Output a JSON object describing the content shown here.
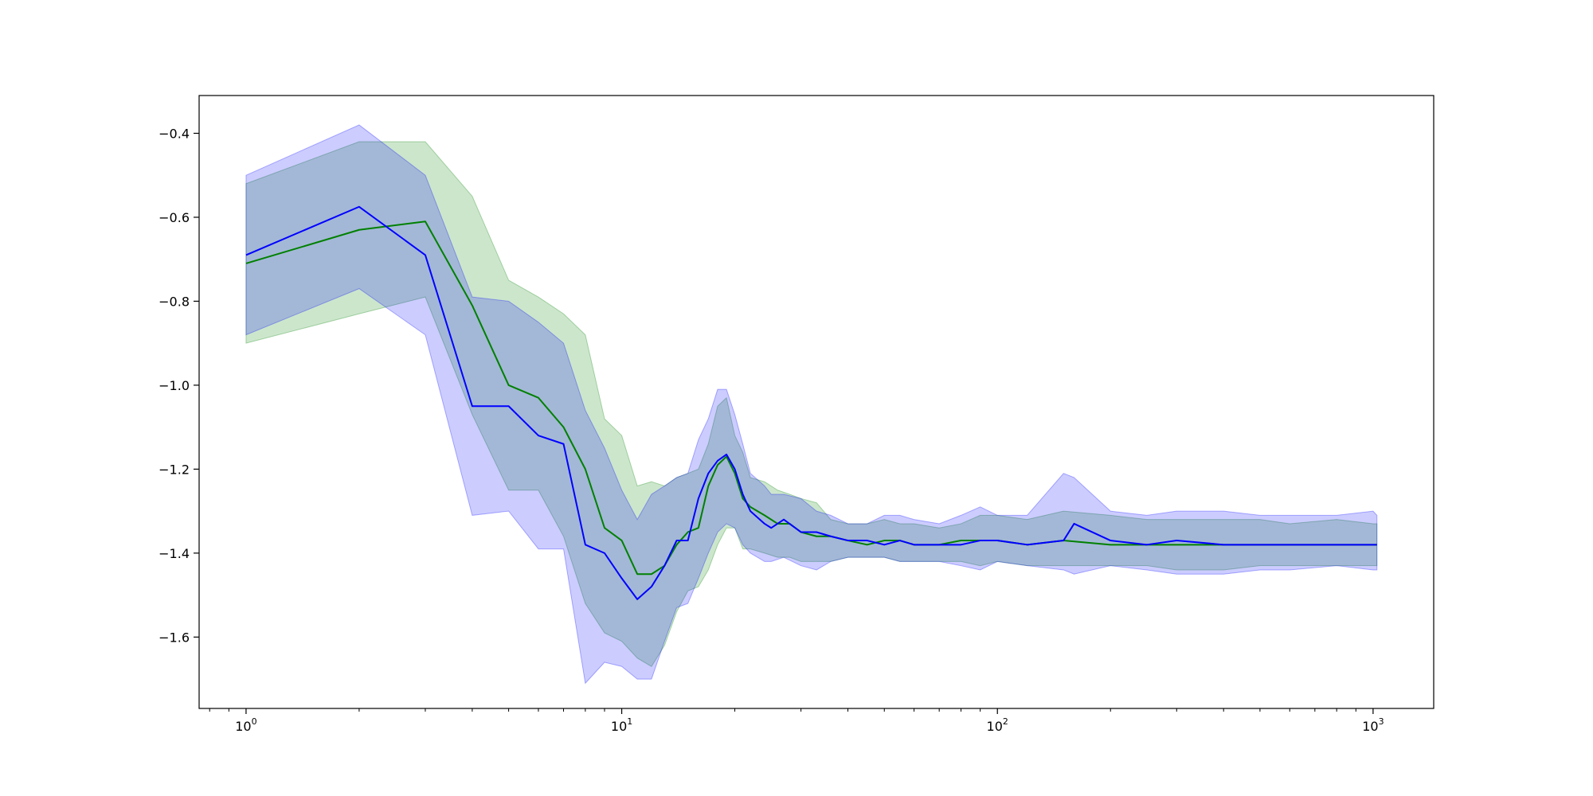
{
  "chart_data": {
    "type": "line",
    "title": "",
    "xlabel": "",
    "ylabel": "",
    "xscale": "log",
    "xlim": [
      0.75,
      1450
    ],
    "ylim": [
      -1.77,
      -0.31
    ],
    "grid": false,
    "legend": "none",
    "x_ticks": [
      {
        "value": 1,
        "base": "10",
        "exp": "0"
      },
      {
        "value": 10,
        "base": "10",
        "exp": "1"
      },
      {
        "value": 100,
        "base": "10",
        "exp": "2"
      },
      {
        "value": 1000,
        "base": "10",
        "exp": "3"
      }
    ],
    "y_ticks": [
      {
        "value": -0.4,
        "label": "−0.4"
      },
      {
        "value": -0.6,
        "label": "−0.6"
      },
      {
        "value": -0.8,
        "label": "−0.8"
      },
      {
        "value": -1.0,
        "label": "−1.0"
      },
      {
        "value": -1.2,
        "label": "−1.2"
      },
      {
        "value": -1.4,
        "label": "−1.4"
      },
      {
        "value": -1.6,
        "label": "−1.6"
      }
    ],
    "series": [
      {
        "color": "#008000",
        "band_color": "#008000",
        "band_alpha": 0.2,
        "points": [
          [
            1,
            -0.71,
            -0.52,
            -0.9
          ],
          [
            2,
            -0.63,
            -0.42,
            -0.83
          ],
          [
            3,
            -0.61,
            -0.42,
            -0.79
          ],
          [
            4,
            -0.81,
            -0.55,
            -1.07
          ],
          [
            5,
            -1.0,
            -0.75,
            -1.25
          ],
          [
            6,
            -1.03,
            -0.79,
            -1.25
          ],
          [
            7,
            -1.1,
            -0.83,
            -1.36
          ],
          [
            8,
            -1.2,
            -0.88,
            -1.52
          ],
          [
            9,
            -1.34,
            -1.08,
            -1.59
          ],
          [
            10,
            -1.37,
            -1.12,
            -1.61
          ],
          [
            11,
            -1.45,
            -1.24,
            -1.65
          ],
          [
            12,
            -1.45,
            -1.23,
            -1.67
          ],
          [
            13,
            -1.43,
            -1.24,
            -1.62
          ],
          [
            14,
            -1.38,
            -1.22,
            -1.54
          ],
          [
            15,
            -1.35,
            -1.21,
            -1.49
          ],
          [
            16,
            -1.34,
            -1.2,
            -1.48
          ],
          [
            17,
            -1.24,
            -1.14,
            -1.44
          ],
          [
            18,
            -1.19,
            -1.05,
            -1.38
          ],
          [
            19,
            -1.17,
            -1.03,
            -1.34
          ],
          [
            20,
            -1.21,
            -1.12,
            -1.34
          ],
          [
            21,
            -1.27,
            -1.16,
            -1.39
          ],
          [
            22,
            -1.29,
            -1.22,
            -1.39
          ],
          [
            24,
            -1.31,
            -1.23,
            -1.4
          ],
          [
            26,
            -1.33,
            -1.25,
            -1.41
          ],
          [
            28,
            -1.33,
            -1.26,
            -1.41
          ],
          [
            30,
            -1.35,
            -1.27,
            -1.42
          ],
          [
            33,
            -1.36,
            -1.28,
            -1.42
          ],
          [
            36,
            -1.36,
            -1.32,
            -1.42
          ],
          [
            40,
            -1.37,
            -1.33,
            -1.41
          ],
          [
            45,
            -1.38,
            -1.33,
            -1.41
          ],
          [
            50,
            -1.37,
            -1.32,
            -1.41
          ],
          [
            55,
            -1.37,
            -1.33,
            -1.42
          ],
          [
            60,
            -1.38,
            -1.33,
            -1.42
          ],
          [
            70,
            -1.38,
            -1.34,
            -1.42
          ],
          [
            80,
            -1.37,
            -1.33,
            -1.42
          ],
          [
            90,
            -1.37,
            -1.31,
            -1.43
          ],
          [
            100,
            -1.37,
            -1.31,
            -1.42
          ],
          [
            120,
            -1.38,
            -1.32,
            -1.43
          ],
          [
            150,
            -1.37,
            -1.3,
            -1.43
          ],
          [
            200,
            -1.38,
            -1.31,
            -1.43
          ],
          [
            250,
            -1.38,
            -1.32,
            -1.43
          ],
          [
            300,
            -1.38,
            -1.32,
            -1.44
          ],
          [
            400,
            -1.38,
            -1.32,
            -1.44
          ],
          [
            500,
            -1.38,
            -1.32,
            -1.43
          ],
          [
            600,
            -1.38,
            -1.33,
            -1.43
          ],
          [
            800,
            -1.38,
            -1.32,
            -1.43
          ],
          [
            1000,
            -1.38,
            -1.33,
            -1.43
          ],
          [
            1024,
            -1.38,
            -1.33,
            -1.43
          ]
        ]
      },
      {
        "color": "#0000ff",
        "band_color": "#0000ff",
        "band_alpha": 0.2,
        "points": [
          [
            1,
            -0.69,
            -0.5,
            -0.88
          ],
          [
            2,
            -0.575,
            -0.38,
            -0.77
          ],
          [
            3,
            -0.69,
            -0.5,
            -0.88
          ],
          [
            4,
            -1.05,
            -0.79,
            -1.31
          ],
          [
            5,
            -1.05,
            -0.8,
            -1.3
          ],
          [
            6,
            -1.12,
            -0.85,
            -1.39
          ],
          [
            7,
            -1.14,
            -0.9,
            -1.39
          ],
          [
            8,
            -1.38,
            -1.06,
            -1.71
          ],
          [
            9,
            -1.4,
            -1.15,
            -1.66
          ],
          [
            10,
            -1.46,
            -1.25,
            -1.67
          ],
          [
            11,
            -1.51,
            -1.32,
            -1.7
          ],
          [
            12,
            -1.48,
            -1.26,
            -1.7
          ],
          [
            13,
            -1.43,
            -1.24,
            -1.61
          ],
          [
            14,
            -1.37,
            -1.22,
            -1.53
          ],
          [
            15,
            -1.37,
            -1.21,
            -1.52
          ],
          [
            16,
            -1.27,
            -1.13,
            -1.46
          ],
          [
            17,
            -1.21,
            -1.08,
            -1.4
          ],
          [
            18,
            -1.18,
            -1.01,
            -1.35
          ],
          [
            19,
            -1.165,
            -1.01,
            -1.33
          ],
          [
            20,
            -1.2,
            -1.07,
            -1.34
          ],
          [
            21,
            -1.26,
            -1.14,
            -1.38
          ],
          [
            22,
            -1.3,
            -1.21,
            -1.4
          ],
          [
            24,
            -1.33,
            -1.24,
            -1.42
          ],
          [
            25,
            -1.34,
            -1.26,
            -1.42
          ],
          [
            27,
            -1.32,
            -1.26,
            -1.41
          ],
          [
            30,
            -1.35,
            -1.27,
            -1.43
          ],
          [
            33,
            -1.35,
            -1.3,
            -1.44
          ],
          [
            36,
            -1.36,
            -1.31,
            -1.42
          ],
          [
            40,
            -1.37,
            -1.33,
            -1.41
          ],
          [
            45,
            -1.37,
            -1.33,
            -1.41
          ],
          [
            50,
            -1.38,
            -1.31,
            -1.41
          ],
          [
            55,
            -1.37,
            -1.31,
            -1.42
          ],
          [
            60,
            -1.38,
            -1.32,
            -1.42
          ],
          [
            70,
            -1.38,
            -1.33,
            -1.42
          ],
          [
            80,
            -1.38,
            -1.31,
            -1.43
          ],
          [
            90,
            -1.37,
            -1.29,
            -1.44
          ],
          [
            100,
            -1.37,
            -1.31,
            -1.42
          ],
          [
            120,
            -1.38,
            -1.31,
            -1.43
          ],
          [
            150,
            -1.37,
            -1.21,
            -1.44
          ],
          [
            160,
            -1.33,
            -1.22,
            -1.45
          ],
          [
            200,
            -1.37,
            -1.3,
            -1.43
          ],
          [
            250,
            -1.38,
            -1.31,
            -1.44
          ],
          [
            300,
            -1.37,
            -1.3,
            -1.45
          ],
          [
            400,
            -1.38,
            -1.3,
            -1.45
          ],
          [
            500,
            -1.38,
            -1.31,
            -1.44
          ],
          [
            600,
            -1.38,
            -1.31,
            -1.44
          ],
          [
            800,
            -1.38,
            -1.31,
            -1.43
          ],
          [
            1000,
            -1.38,
            -1.3,
            -1.44
          ],
          [
            1024,
            -1.38,
            -1.31,
            -1.44
          ]
        ]
      }
    ]
  }
}
